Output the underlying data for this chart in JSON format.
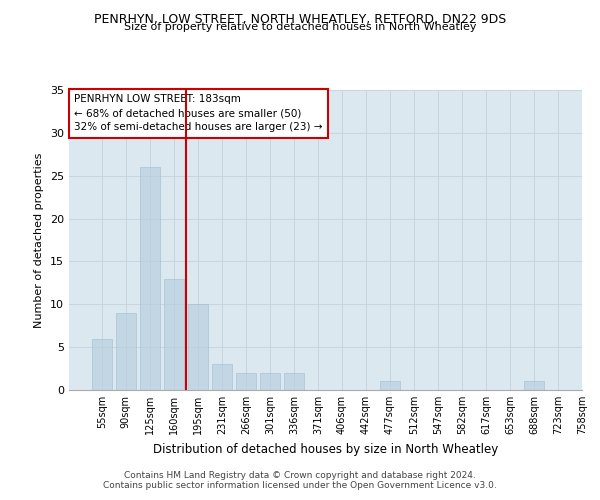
{
  "title": "PENRHYN, LOW STREET, NORTH WHEATLEY, RETFORD, DN22 9DS",
  "subtitle": "Size of property relative to detached houses in North Wheatley",
  "xlabel": "Distribution of detached houses by size in North Wheatley",
  "ylabel": "Number of detached properties",
  "footnote1": "Contains HM Land Registry data © Crown copyright and database right 2024.",
  "footnote2": "Contains public sector information licensed under the Open Government Licence v3.0.",
  "bin_labels": [
    "55sqm",
    "90sqm",
    "125sqm",
    "160sqm",
    "195sqm",
    "231sqm",
    "266sqm",
    "301sqm",
    "336sqm",
    "371sqm",
    "406sqm",
    "442sqm",
    "477sqm",
    "512sqm",
    "547sqm",
    "582sqm",
    "617sqm",
    "653sqm",
    "688sqm",
    "723sqm",
    "758sqm"
  ],
  "counts": [
    6,
    9,
    26,
    13,
    10,
    3,
    2,
    2,
    2,
    0,
    0,
    0,
    1,
    0,
    0,
    0,
    0,
    0,
    1,
    0,
    0
  ],
  "bar_color": "#b8cfe0",
  "bar_edge_color": "#99b8cc",
  "bar_fill_alpha": 0.7,
  "grid_color": "#c8d4e0",
  "bg_color": "#dce8f0",
  "property_line_color": "#cc0000",
  "annotation_line1": "PENRHYN LOW STREET: 183sqm",
  "annotation_line2": "← 68% of detached houses are smaller (50)",
  "annotation_line3": "32% of semi-detached houses are larger (23) →",
  "annotation_box_color": "#cc0000",
  "ylim": [
    0,
    35
  ],
  "yticks": [
    0,
    5,
    10,
    15,
    20,
    25,
    30,
    35
  ],
  "prop_line_index": 3.5
}
